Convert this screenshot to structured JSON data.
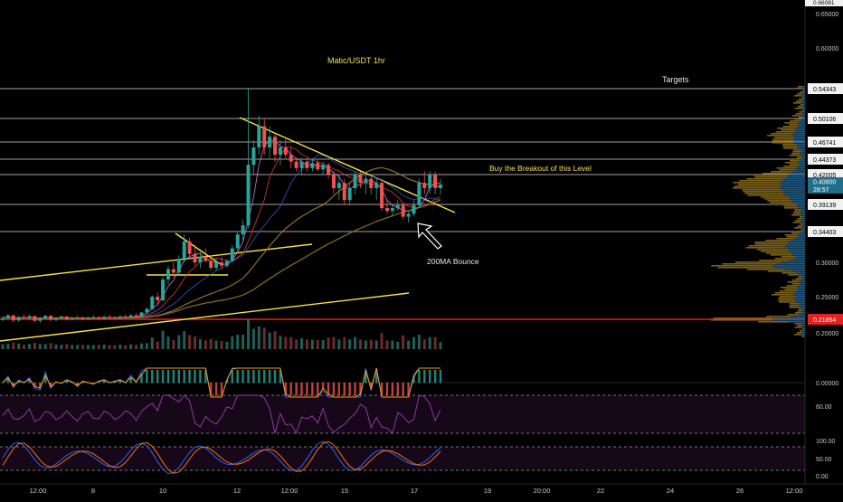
{
  "chart_data": {
    "type": "candlestick",
    "title": "Matic/USDT 1hr",
    "x_axis": {
      "tick_labels": [
        "12:00",
        "8",
        "10",
        "12",
        "12:00",
        "15",
        "17",
        "19",
        "20:00",
        "22",
        "24",
        "26",
        "12:00"
      ]
    },
    "price_axis": {
      "ylim": [
        0.19,
        0.66
      ],
      "ticks": [
        0.65,
        0.6,
        0.3,
        0.25,
        0.2
      ],
      "tick_labels": [
        "0.65000",
        "0.60000",
        "0.30000",
        "0.25000",
        "0.20000"
      ],
      "top_cut_label": "0.66081"
    },
    "horizontal_levels": [
      {
        "value": 0.54343,
        "label": "0.54343",
        "color": "#d9d9d9"
      },
      {
        "value": 0.50106,
        "label": "0.50106",
        "color": "#d9d9d9"
      },
      {
        "value": 0.46741,
        "label": "0.46741",
        "color": "#d9d9d9"
      },
      {
        "value": 0.44373,
        "label": "0.44373",
        "color": "#d9d9d9"
      },
      {
        "value": 0.42005,
        "label": "0.42005",
        "color": "#d9d9d9"
      },
      {
        "value": 0.39139,
        "label": "0.39139",
        "color": "#d9d9d9"
      },
      {
        "value": 0.34403,
        "label": "0.34403",
        "color": "#d9d9d9"
      },
      {
        "value": 0.21854,
        "label": "0.21854",
        "color": "#e8201f"
      }
    ],
    "current_price": {
      "value": 0.408,
      "label": "0.40800",
      "countdown": "28:57",
      "color": "#1f6f8b"
    },
    "annotations": [
      {
        "text": "Matic/USDT 1hr",
        "color": "#f2e14a"
      },
      {
        "text": "Targets",
        "color": "#e6e6e6"
      },
      {
        "text": "Buy the Breakout of this Level",
        "color": "#f2e14a"
      },
      {
        "text": "200MA Bounce",
        "color": "#e6e6e6"
      }
    ],
    "candles": [
      [
        0.218,
        0.2235,
        0.216,
        0.22
      ],
      [
        0.22,
        0.226,
        0.218,
        0.224
      ],
      [
        0.224,
        0.225,
        0.215,
        0.217
      ],
      [
        0.217,
        0.223,
        0.215,
        0.2215
      ],
      [
        0.2215,
        0.2255,
        0.219,
        0.22
      ],
      [
        0.22,
        0.2245,
        0.217,
        0.223
      ],
      [
        0.223,
        0.224,
        0.215,
        0.2165
      ],
      [
        0.2165,
        0.2215,
        0.214,
        0.2195
      ],
      [
        0.2195,
        0.225,
        0.2185,
        0.2235
      ],
      [
        0.2235,
        0.2245,
        0.216,
        0.218
      ],
      [
        0.218,
        0.2215,
        0.2155,
        0.2205
      ],
      [
        0.2205,
        0.224,
        0.219,
        0.2225
      ],
      [
        0.2225,
        0.223,
        0.217,
        0.2185
      ],
      [
        0.2185,
        0.222,
        0.217,
        0.22
      ],
      [
        0.22,
        0.2235,
        0.218,
        0.221
      ],
      [
        0.221,
        0.2225,
        0.2175,
        0.219
      ],
      [
        0.219,
        0.222,
        0.217,
        0.2205
      ],
      [
        0.2205,
        0.224,
        0.219,
        0.2215
      ],
      [
        0.2215,
        0.223,
        0.218,
        0.2195
      ],
      [
        0.2195,
        0.223,
        0.218,
        0.222
      ],
      [
        0.222,
        0.2245,
        0.22,
        0.221
      ],
      [
        0.221,
        0.223,
        0.2185,
        0.22
      ],
      [
        0.22,
        0.224,
        0.219,
        0.2225
      ],
      [
        0.2225,
        0.225,
        0.22,
        0.2215
      ],
      [
        0.2215,
        0.226,
        0.2195,
        0.224
      ],
      [
        0.224,
        0.227,
        0.221,
        0.2225
      ],
      [
        0.2225,
        0.229,
        0.2215,
        0.228
      ],
      [
        0.228,
        0.235,
        0.226,
        0.233
      ],
      [
        0.233,
        0.252,
        0.231,
        0.25
      ],
      [
        0.25,
        0.256,
        0.24,
        0.245
      ],
      [
        0.245,
        0.28,
        0.243,
        0.275
      ],
      [
        0.275,
        0.295,
        0.268,
        0.29
      ],
      [
        0.29,
        0.3,
        0.278,
        0.285
      ],
      [
        0.285,
        0.31,
        0.282,
        0.305
      ],
      [
        0.305,
        0.34,
        0.3,
        0.33
      ],
      [
        0.33,
        0.335,
        0.305,
        0.312
      ],
      [
        0.312,
        0.325,
        0.295,
        0.3
      ],
      [
        0.3,
        0.315,
        0.292,
        0.308
      ],
      [
        0.308,
        0.32,
        0.3,
        0.302
      ],
      [
        0.302,
        0.31,
        0.288,
        0.292
      ],
      [
        0.292,
        0.305,
        0.288,
        0.3
      ],
      [
        0.3,
        0.308,
        0.29,
        0.295
      ],
      [
        0.295,
        0.305,
        0.292,
        0.302
      ],
      [
        0.302,
        0.325,
        0.3,
        0.32
      ],
      [
        0.32,
        0.345,
        0.315,
        0.34
      ],
      [
        0.34,
        0.365,
        0.33,
        0.355
      ],
      [
        0.355,
        0.543,
        0.35,
        0.435
      ],
      [
        0.435,
        0.47,
        0.42,
        0.46
      ],
      [
        0.46,
        0.505,
        0.45,
        0.49
      ],
      [
        0.49,
        0.5,
        0.45,
        0.46
      ],
      [
        0.46,
        0.49,
        0.445,
        0.475
      ],
      [
        0.475,
        0.48,
        0.44,
        0.45
      ],
      [
        0.45,
        0.47,
        0.435,
        0.46
      ],
      [
        0.46,
        0.475,
        0.445,
        0.45
      ],
      [
        0.45,
        0.46,
        0.43,
        0.44
      ],
      [
        0.44,
        0.445,
        0.425,
        0.43
      ],
      [
        0.43,
        0.445,
        0.42,
        0.44
      ],
      [
        0.44,
        0.445,
        0.425,
        0.43
      ],
      [
        0.43,
        0.445,
        0.425,
        0.438
      ],
      [
        0.438,
        0.442,
        0.425,
        0.428
      ],
      [
        0.428,
        0.44,
        0.42,
        0.435
      ],
      [
        0.435,
        0.438,
        0.415,
        0.42
      ],
      [
        0.42,
        0.425,
        0.4,
        0.405
      ],
      [
        0.405,
        0.42,
        0.395,
        0.41
      ],
      [
        0.41,
        0.415,
        0.39,
        0.395
      ],
      [
        0.395,
        0.41,
        0.39,
        0.405
      ],
      [
        0.405,
        0.425,
        0.4,
        0.42
      ],
      [
        0.42,
        0.425,
        0.405,
        0.41
      ],
      [
        0.41,
        0.42,
        0.4,
        0.415
      ],
      [
        0.415,
        0.418,
        0.4,
        0.405
      ],
      [
        0.405,
        0.415,
        0.395,
        0.41
      ],
      [
        0.41,
        0.412,
        0.38,
        0.385
      ],
      [
        0.385,
        0.395,
        0.375,
        0.38
      ],
      [
        0.38,
        0.39,
        0.37,
        0.385
      ],
      [
        0.385,
        0.395,
        0.38,
        0.39
      ],
      [
        0.39,
        0.392,
        0.365,
        0.37
      ],
      [
        0.37,
        0.38,
        0.36,
        0.375
      ],
      [
        0.375,
        0.395,
        0.37,
        0.39
      ],
      [
        0.39,
        0.415,
        0.385,
        0.41
      ],
      [
        0.41,
        0.425,
        0.4,
        0.405
      ],
      [
        0.405,
        0.425,
        0.4,
        0.42
      ],
      [
        0.42,
        0.425,
        0.4,
        0.405
      ],
      [
        0.405,
        0.415,
        0.4,
        0.408
      ]
    ],
    "indicator_panels": [
      {
        "name": "oscillator",
        "tick_labels": [
          "0.00000"
        ]
      },
      {
        "name": "rsi",
        "tick_labels": [
          "60.00"
        ]
      },
      {
        "name": "stochastic",
        "tick_labels": [
          "100.00",
          "50.00",
          "0.00"
        ]
      }
    ]
  }
}
